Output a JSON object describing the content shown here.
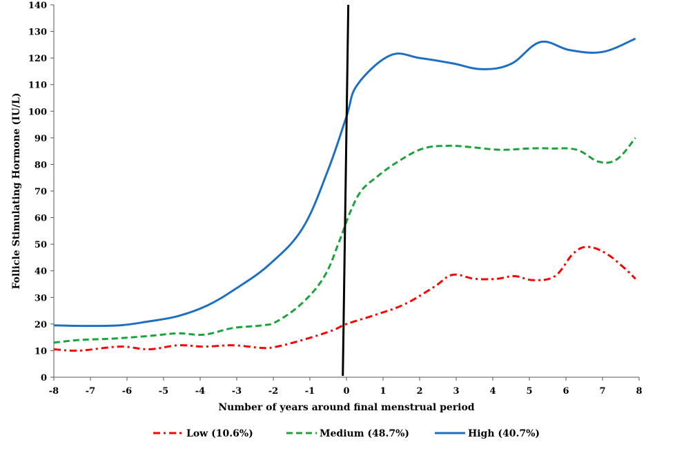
{
  "chart_data": {
    "type": "line",
    "title": "",
    "xlabel": "Number of years around final menstrual period",
    "ylabel": "Follicle Stimulating Hormone (IU/L)",
    "xlim": [
      -8,
      8
    ],
    "ylim": [
      0,
      140
    ],
    "x_ticks": [
      -8,
      -7,
      -6,
      -5,
      -4,
      -3,
      -2,
      -1,
      0,
      1,
      2,
      3,
      4,
      5,
      6,
      7,
      8
    ],
    "y_ticks": [
      0,
      10,
      20,
      30,
      40,
      50,
      60,
      70,
      80,
      90,
      100,
      110,
      120,
      130,
      140
    ],
    "grid": false,
    "legend_position": "bottom",
    "series": [
      {
        "name": "Low (10.6%)",
        "color": "#ff0000",
        "style": "dash-dot",
        "x": [
          -8,
          -7.3,
          -6.2,
          -5.4,
          -4.6,
          -3.9,
          -3.1,
          -2.3,
          -1.9,
          -1.2,
          -0.4,
          0,
          0.8,
          1.6,
          2.4,
          2.9,
          3.5,
          4.1,
          4.6,
          5.1,
          5.7,
          6.2,
          6.6,
          7.1,
          7.6,
          7.9
        ],
        "y": [
          10.5,
          10,
          11.5,
          10.5,
          12,
          11.5,
          12,
          11,
          11.5,
          14,
          17.5,
          20,
          23.5,
          27.5,
          34,
          38.5,
          37,
          37,
          38,
          36.5,
          38,
          46.5,
          49,
          46.5,
          41,
          37
        ]
      },
      {
        "name": "Medium (48.7%)",
        "color": "#1aa33a",
        "style": "dashed",
        "x": [
          -8,
          -7.3,
          -6.4,
          -5.4,
          -4.6,
          -3.9,
          -3.1,
          -2.3,
          -1.9,
          -1.2,
          -0.6,
          -0.2,
          0.1,
          0.4,
          0.8,
          1.4,
          2.1,
          2.8,
          3.4,
          4.2,
          5,
          5.6,
          6.3,
          6.9,
          7.4,
          7.9
        ],
        "y": [
          13,
          14,
          14.5,
          15.5,
          16.5,
          16,
          18.5,
          19.5,
          21,
          28,
          38,
          51,
          62,
          70,
          75,
          81,
          86,
          87,
          86.5,
          85.5,
          86,
          86,
          85.5,
          81,
          82,
          90
        ]
      },
      {
        "name": "High (40.7%)",
        "color": "#1c6fc2",
        "style": "solid",
        "x": [
          -8,
          -7.2,
          -6.2,
          -5.4,
          -4.6,
          -3.8,
          -3,
          -2.1,
          -1.2,
          -0.5,
          0,
          0.3,
          1.2,
          2,
          2.9,
          3.7,
          4.5,
          5.3,
          6.1,
          7,
          7.9
        ],
        "y": [
          19.5,
          19.3,
          19.5,
          21,
          23,
          27,
          33.5,
          42.5,
          56,
          78,
          98,
          110,
          121,
          120,
          118,
          115.8,
          117.8,
          126,
          123,
          122.3,
          127.3
        ]
      }
    ],
    "annotations": [
      {
        "type": "line",
        "color": "#000000",
        "x": [
          -0.1,
          0.05
        ],
        "y": [
          0.5,
          140
        ]
      }
    ]
  }
}
